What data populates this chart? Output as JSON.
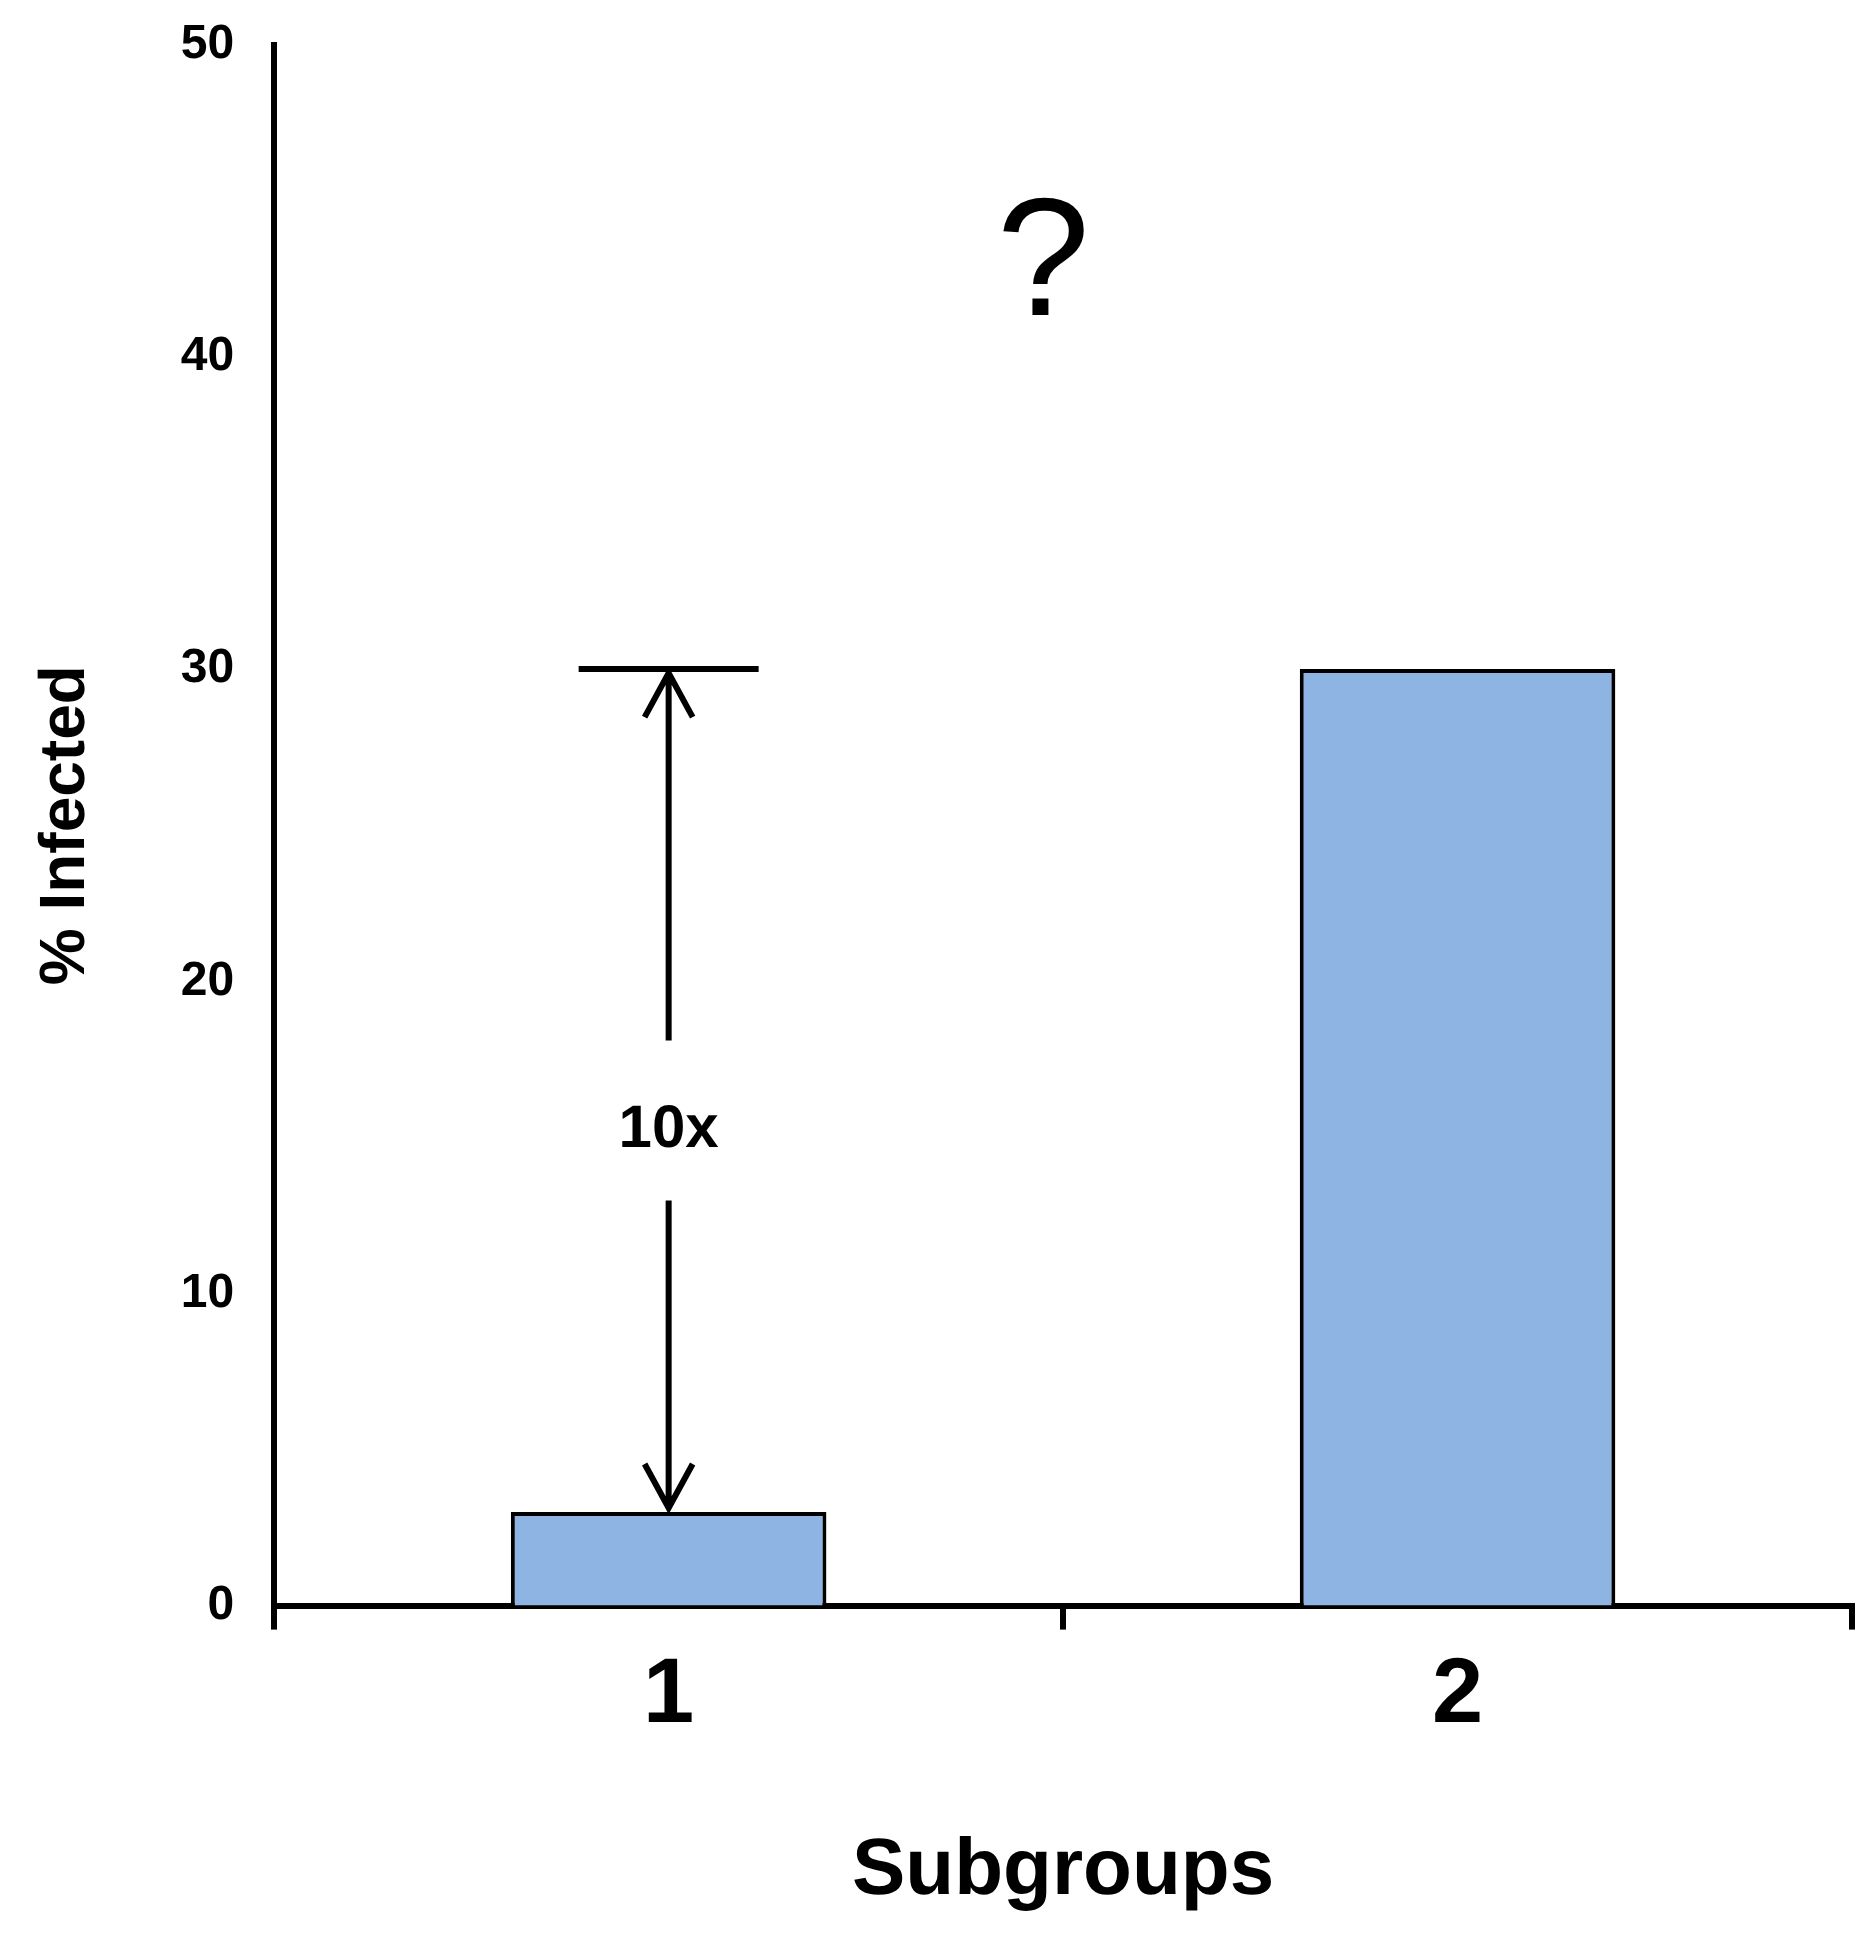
{
  "chart_data": {
    "type": "bar",
    "xlabel": "Subgroups",
    "ylabel": "% Infected",
    "categories": [
      "1",
      "2"
    ],
    "values": [
      3,
      30
    ],
    "color": "#8eb4e3",
    "ylim": [
      0,
      50
    ],
    "yticks": [
      0,
      10,
      20,
      30,
      40,
      50
    ],
    "annotations": [
      "?",
      {
        "text": "10x",
        "x": "1",
        "y": 3
      }
    ]
  }
}
